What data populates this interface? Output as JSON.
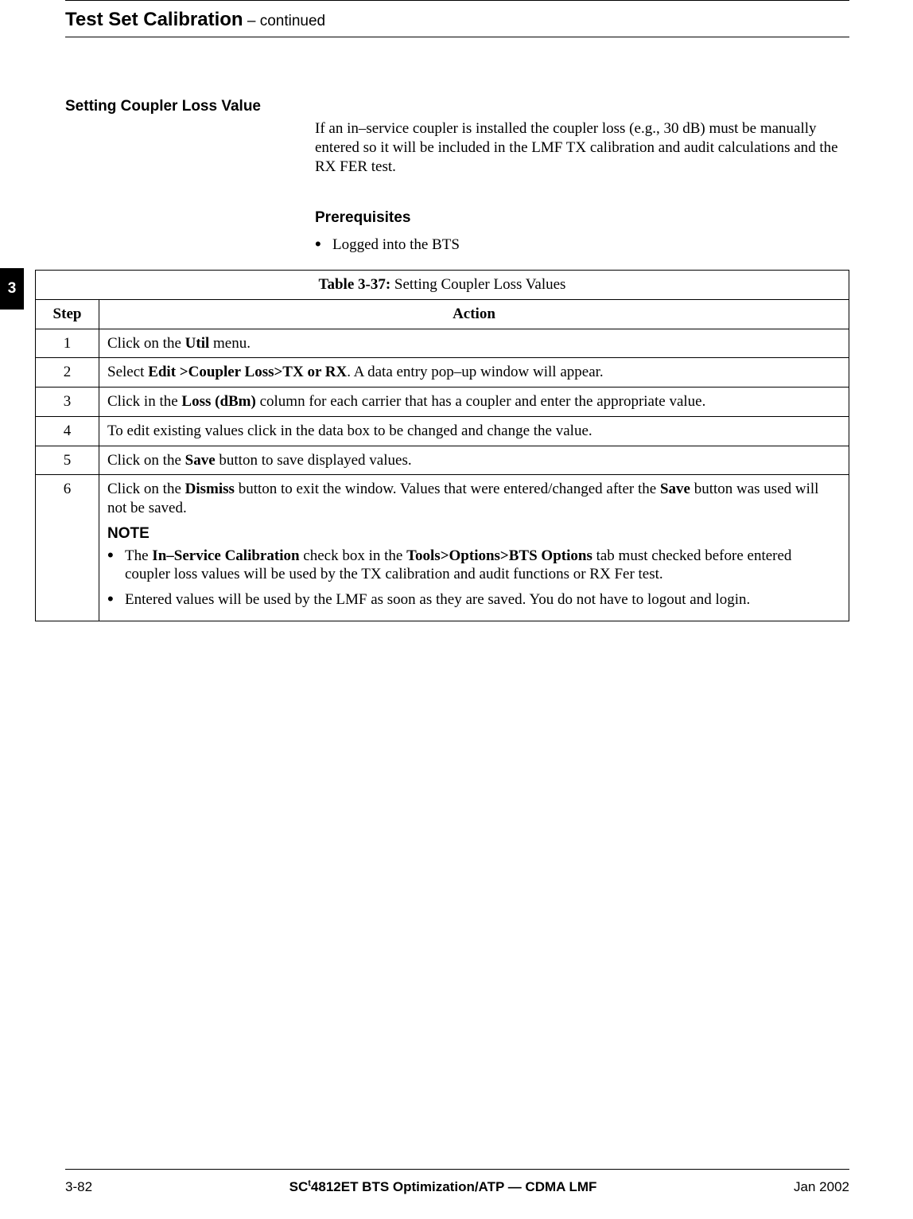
{
  "header": {
    "title_main": "Test Set Calibration",
    "title_cont": " – continued"
  },
  "chapter_tab": "3",
  "section_heading": "Setting Coupler Loss Value",
  "intro_para": "If an in–service coupler is installed the coupler loss (e.g., 30 dB) must be manually entered so it will be included in the LMF TX calibration and audit calculations and the RX FER test.",
  "prereq": {
    "heading": "Prerequisites",
    "items": [
      "Logged into the BTS"
    ]
  },
  "table": {
    "caption_bold": "Table 3-37:",
    "caption_rest": " Setting Coupler Loss Values",
    "head_step": "Step",
    "head_action": "Action",
    "rows": [
      {
        "step": "1",
        "action_html": "Click on the <b>Util</b> menu."
      },
      {
        "step": "2",
        "action_html": "Select <b>Edit &gt;Coupler Loss&gt;TX or RX</b>. A data entry pop–up window will appear."
      },
      {
        "step": "3",
        "action_html": "Click in the <b>Loss (dBm)</b> column for each carrier that has a coupler and enter the appropriate value."
      },
      {
        "step": "4",
        "action_html": "To edit existing values click in the data box to be changed and change the value."
      },
      {
        "step": "5",
        "action_html": "Click on the <b>Save</b> button to save displayed values."
      },
      {
        "step": "6",
        "action_html": "Click on the <b>Dismiss</b> button to exit the window. Values that were entered/changed after the <b>Save</b> button was used will not be saved."
      }
    ],
    "note_heading": "NOTE",
    "note_items_html": [
      "The <b>In–Service Calibration</b> check box in the <b>Tools&gt;Options&gt;BTS Options</b> tab must checked before entered coupler loss values will be used by the TX calibration and audit functions or RX Fer test.",
      "Entered values will be used by the LMF as soon as they are saved. You do not have to logout and login."
    ]
  },
  "footer": {
    "left": "3-82",
    "center_pre": "SC",
    "center_tm": "t",
    "center_post": "4812ET BTS Optimization/ATP — CDMA LMF",
    "right": "Jan 2002"
  }
}
